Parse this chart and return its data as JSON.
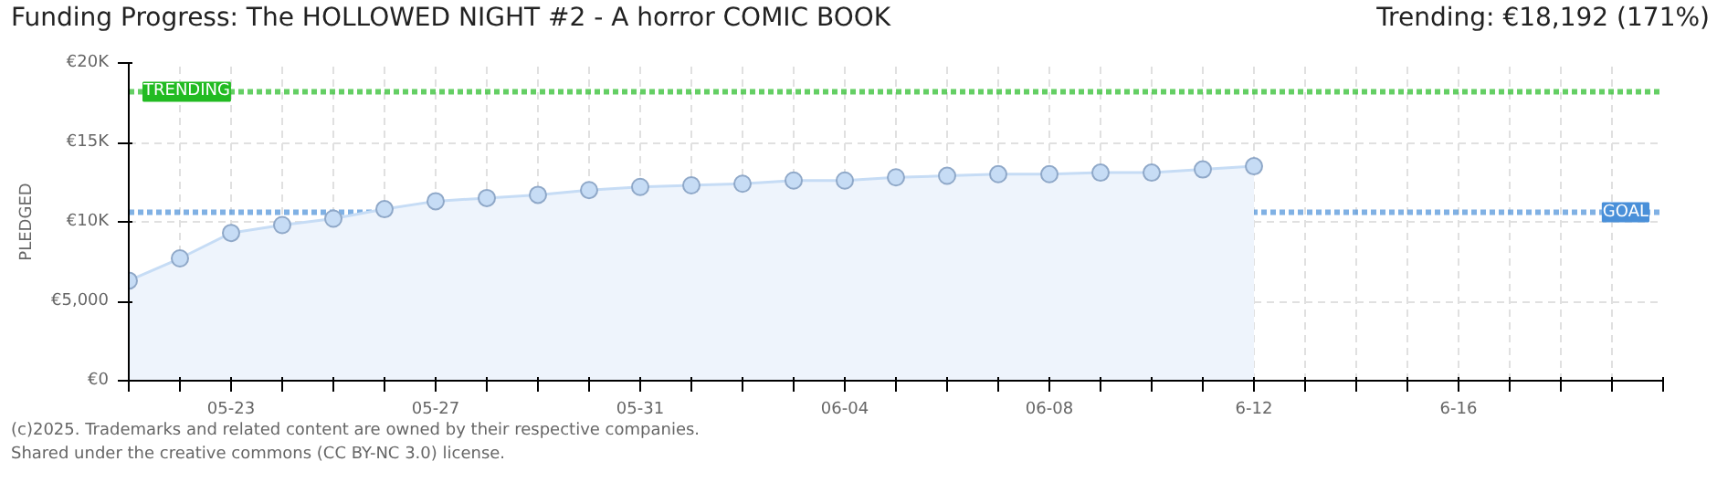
{
  "chart_data": {
    "type": "area",
    "title": "Funding Progress: The HOLLOWED NIGHT #2 - A horror COMIC BOOK",
    "subtitle": "Trending: €18,192 (171%)",
    "ylabel": "PLEDGED",
    "x": [
      "2025-05-21",
      "2025-05-22",
      "2025-05-23",
      "2025-05-24",
      "2025-05-25",
      "2025-05-26",
      "2025-05-27",
      "2025-05-28",
      "2025-05-29",
      "2025-05-30",
      "2025-05-31",
      "2025-06-01",
      "2025-06-02",
      "2025-06-03",
      "2025-06-04",
      "2025-06-05",
      "2025-06-06",
      "2025-06-07",
      "2025-06-08",
      "2025-06-09",
      "2025-06-10",
      "2025-06-11",
      "2025-06-12"
    ],
    "series": [
      {
        "color": "#c6dcf5",
        "values": [
          6300,
          7700,
          9300,
          9800,
          10200,
          10800,
          11300,
          11500,
          11700,
          12000,
          12200,
          12300,
          12400,
          12600,
          12600,
          12800,
          12900,
          13000,
          13000,
          13100,
          13100,
          13300,
          13500
        ]
      }
    ],
    "marker": "circle",
    "line_style": "solid",
    "xlim": [
      "2025-05-21",
      "2025-06-20"
    ],
    "xticks": [
      {
        "value": "2025-05-21",
        "label": null
      },
      {
        "value": "2025-05-22",
        "label": null
      },
      {
        "value": "2025-05-23",
        "label": "05-23"
      },
      {
        "value": "2025-05-24",
        "label": null
      },
      {
        "value": "2025-05-25",
        "label": null
      },
      {
        "value": "2025-05-26",
        "label": null
      },
      {
        "value": "2025-05-27",
        "label": "05-27"
      },
      {
        "value": "2025-05-28",
        "label": null
      },
      {
        "value": "2025-05-29",
        "label": null
      },
      {
        "value": "2025-05-30",
        "label": null
      },
      {
        "value": "2025-05-31",
        "label": "05-31"
      },
      {
        "value": "2025-06-01",
        "label": null
      },
      {
        "value": "2025-06-02",
        "label": null
      },
      {
        "value": "2025-06-03",
        "label": null
      },
      {
        "value": "2025-06-04",
        "label": "06-04"
      },
      {
        "value": "2025-06-05",
        "label": null
      },
      {
        "value": "2025-06-06",
        "label": null
      },
      {
        "value": "2025-06-07",
        "label": null
      },
      {
        "value": "2025-06-08",
        "label": "06-08"
      },
      {
        "value": "2025-06-09",
        "label": null
      },
      {
        "value": "2025-06-10",
        "label": null
      },
      {
        "value": "2025-06-11",
        "label": null
      },
      {
        "value": "2025-06-12",
        "label": "6-12"
      },
      {
        "value": "2025-06-13",
        "label": null
      },
      {
        "value": "2025-06-14",
        "label": null
      },
      {
        "value": "2025-06-15",
        "label": null
      },
      {
        "value": "2025-06-16",
        "label": "6-16"
      },
      {
        "value": "2025-06-17",
        "label": null
      },
      {
        "value": "2025-06-18",
        "label": null
      },
      {
        "value": "2025-06-19",
        "label": null
      },
      {
        "value": "2025-06-20",
        "label": null
      }
    ],
    "ylim": [
      0,
      20000
    ],
    "yticks": [
      {
        "value": 0,
        "label": "€0"
      },
      {
        "value": 5000,
        "label": "€5,000"
      },
      {
        "value": 10000,
        "label": "€10K"
      },
      {
        "value": 15000,
        "label": "€15K"
      },
      {
        "value": 20000,
        "label": "€20K"
      }
    ],
    "grid": true,
    "ref_lines": [
      {
        "axis": "y",
        "value": 10600,
        "label": "GOAL",
        "color": "#4a90d9",
        "line_style": "dotted"
      },
      {
        "axis": "y",
        "value": 18192,
        "label": "TRENDING",
        "color": "#22bb22",
        "line_style": "dotted"
      }
    ],
    "annotations": [
      "(c)2025. Trademarks and related content are owned by their respective companies.",
      "Shared under the creative commons (CC BY-NC 3.0) license."
    ]
  }
}
